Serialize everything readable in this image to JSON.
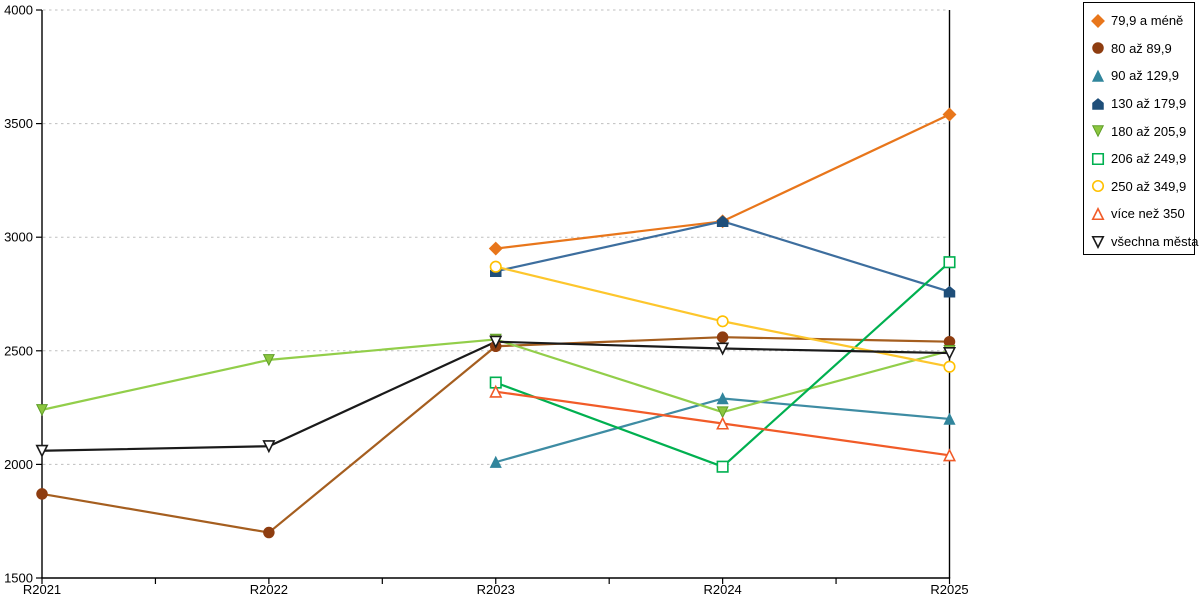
{
  "chart_data": {
    "type": "line",
    "title": "",
    "xlabel": "",
    "ylabel": "",
    "x_categories": [
      "R2021",
      "R2022",
      "R2023",
      "R2024",
      "R2025"
    ],
    "ylim": [
      1500,
      4000
    ],
    "y_ticks": [
      1500,
      2000,
      2500,
      3000,
      3500,
      4000
    ],
    "grid": "horizontal-dashed",
    "gridline_color": "#BFBFBF",
    "axis_color": "#000000",
    "legend_position": "top-right",
    "series": [
      {
        "name": "79,9 a méně",
        "marker": "diamond",
        "marker_style": "solid",
        "color": "#E8761B",
        "values": [
          null,
          null,
          2950,
          3070,
          3540
        ]
      },
      {
        "name": "80 až 89,9",
        "marker": "circle",
        "marker_style": "solid",
        "color": "#8E3D10",
        "line_color": "#A55E1F",
        "values": [
          1870,
          1700,
          2520,
          2560,
          2540
        ]
      },
      {
        "name": "90 až 129,9",
        "marker": "triangle-up",
        "marker_style": "solid",
        "color": "#31859C",
        "line_color": "#3E8CA3",
        "values": [
          null,
          null,
          2010,
          2290,
          2200
        ]
      },
      {
        "name": "130 až 179,9",
        "marker": "pentagon-up",
        "marker_style": "solid",
        "color": "#1F4E79",
        "line_color": "#3D6E9E",
        "values": [
          null,
          null,
          2850,
          3070,
          2760
        ]
      },
      {
        "name": "180 až 205,9",
        "marker": "triangle-down",
        "marker_style": "solid",
        "color": "#8CC63F",
        "marker_stroke": "#5E9E28",
        "line_color": "#92CE4A",
        "values": [
          2240,
          2460,
          2550,
          2230,
          2500
        ]
      },
      {
        "name": "206 až 249,9",
        "marker": "square",
        "marker_style": "open",
        "color": "#00B050",
        "values": [
          null,
          null,
          2360,
          1990,
          2890
        ]
      },
      {
        "name": "250 až 349,9",
        "marker": "circle",
        "marker_style": "open",
        "color": "#FFC000",
        "line_color": "#FDC62C",
        "values": [
          null,
          null,
          2870,
          2630,
          2430
        ]
      },
      {
        "name": "více než 350",
        "marker": "triangle-up",
        "marker_style": "open",
        "color": "#F15B28",
        "values": [
          null,
          null,
          2320,
          2180,
          2040
        ]
      },
      {
        "name": "všechna města",
        "marker": "triangle-down",
        "marker_style": "open",
        "color": "#1A1A1A",
        "values": [
          2060,
          2080,
          2540,
          2510,
          2490
        ]
      }
    ]
  }
}
